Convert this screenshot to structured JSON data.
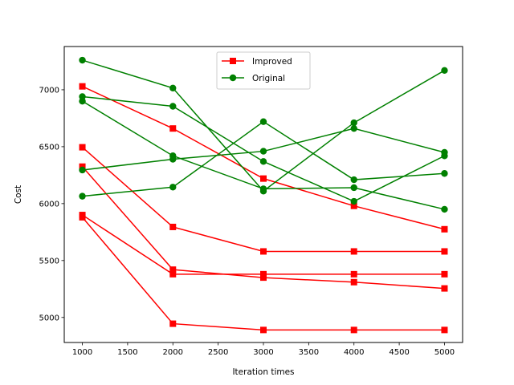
{
  "chart_data": {
    "type": "line",
    "title": "",
    "xlabel": "Iteration times",
    "ylabel": "Cost",
    "xlim": [
      800,
      5200
    ],
    "ylim": [
      4780,
      7380
    ],
    "x": [
      1000,
      2000,
      3000,
      4000,
      5000
    ],
    "xticks": [
      1000,
      1500,
      2000,
      2500,
      3000,
      3500,
      4000,
      4500,
      5000
    ],
    "yticks": [
      5000,
      5500,
      6000,
      6500,
      7000
    ],
    "grid": false,
    "legend": {
      "placement": "top-center",
      "entries": [
        {
          "label": "Improved",
          "color": "#ff0000",
          "marker": "square"
        },
        {
          "label": "Original",
          "color": "#008000",
          "marker": "circle"
        }
      ]
    },
    "series": [
      {
        "group": "Improved",
        "color": "#ff0000",
        "marker": "square",
        "values": [
          7030,
          6660,
          6220,
          5980,
          5775
        ]
      },
      {
        "group": "Improved",
        "color": "#ff0000",
        "marker": "square",
        "values": [
          6495,
          5795,
          5580,
          5580,
          5580
        ]
      },
      {
        "group": "Improved",
        "color": "#ff0000",
        "marker": "square",
        "values": [
          6325,
          5420,
          5350,
          5310,
          5255
        ]
      },
      {
        "group": "Improved",
        "color": "#ff0000",
        "marker": "square",
        "values": [
          5900,
          5380,
          5380,
          5380,
          5380
        ]
      },
      {
        "group": "Improved",
        "color": "#ff0000",
        "marker": "square",
        "values": [
          5880,
          4945,
          4890,
          4890,
          4890
        ]
      },
      {
        "group": "Original",
        "color": "#008000",
        "marker": "circle",
        "values": [
          7260,
          7015,
          6110,
          6710,
          7170
        ]
      },
      {
        "group": "Original",
        "color": "#008000",
        "marker": "circle",
        "values": [
          6940,
          6855,
          6370,
          6020,
          6420
        ]
      },
      {
        "group": "Original",
        "color": "#008000",
        "marker": "circle",
        "values": [
          6900,
          6420,
          6130,
          6140,
          5950
        ]
      },
      {
        "group": "Original",
        "color": "#008000",
        "marker": "circle",
        "values": [
          6295,
          6390,
          6460,
          6660,
          6450
        ]
      },
      {
        "group": "Original",
        "color": "#008000",
        "marker": "circle",
        "values": [
          6065,
          6145,
          6720,
          6210,
          6265
        ]
      }
    ]
  }
}
